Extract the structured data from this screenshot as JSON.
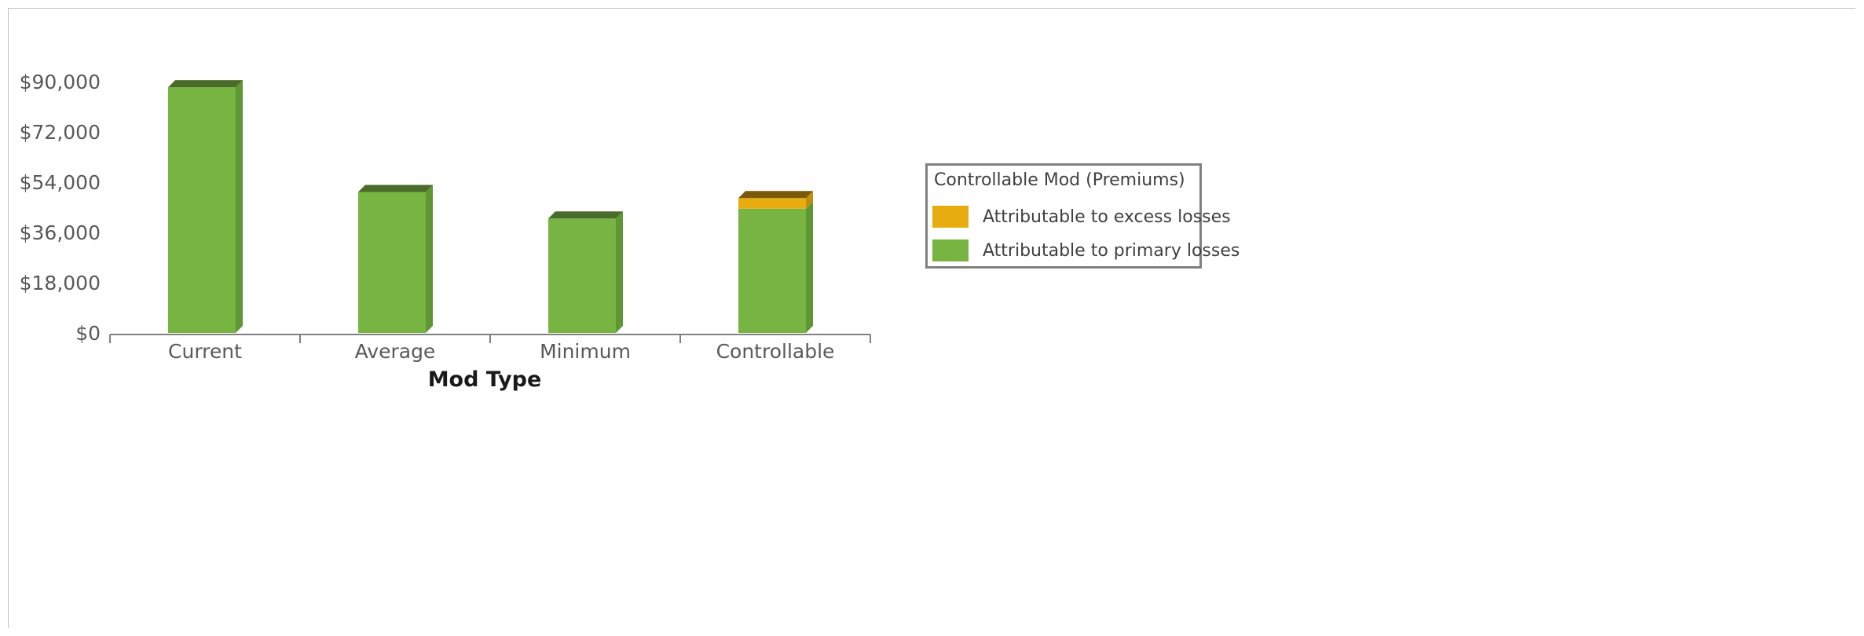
{
  "chart_data": {
    "type": "bar",
    "stacked": true,
    "title": "",
    "xlabel": "Mod Type",
    "ylabel": "",
    "categories": [
      "Current",
      "Average",
      "Minimum",
      "Controllable"
    ],
    "ylim": [
      0,
      90000
    ],
    "yticks": [
      "$0",
      "$18,000",
      "$36,000",
      "$54,000",
      "$72,000",
      "$90,000"
    ],
    "ytick_values": [
      0,
      18000,
      36000,
      54000,
      72000,
      90000
    ],
    "series": [
      {
        "name": "Attributable to primary losses",
        "color": "#77b442",
        "top_color": "#4a6b2b",
        "side_color": "#5f9735",
        "values": [
          88000,
          50500,
          41000,
          44500
        ]
      },
      {
        "name": "Attributable to excess losses",
        "color": "#e6ac10",
        "top_color": "#7a5a08",
        "side_color": "#c08e0c",
        "values": [
          0,
          0,
          0,
          3800
        ]
      }
    ],
    "legend": {
      "title": "Controllable Mod (Premiums)",
      "placement": "right",
      "items": [
        {
          "label": "Attributable to excess losses",
          "color": "#e6ac10"
        },
        {
          "label": "Attributable to primary losses",
          "color": "#77b442"
        }
      ]
    },
    "grid": false
  }
}
